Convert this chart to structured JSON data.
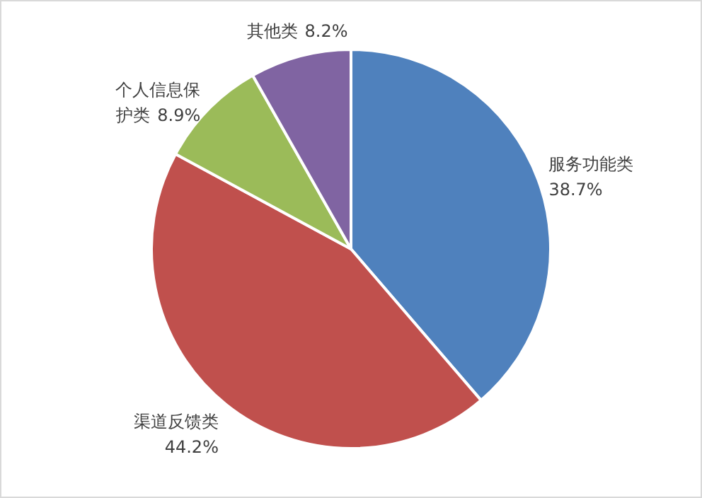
{
  "chart_data": {
    "type": "pie",
    "categories": [
      "服务功能类",
      "渠道反馈类",
      "个人信息保护类",
      "其他类"
    ],
    "values": [
      38.7,
      44.2,
      8.9,
      8.2
    ],
    "colors": [
      "#4f81bd",
      "#c0504d",
      "#9bbb59",
      "#8064a2"
    ],
    "value_labels": [
      "38.7%",
      "44.2%",
      "8.9%",
      "8.2%"
    ]
  }
}
